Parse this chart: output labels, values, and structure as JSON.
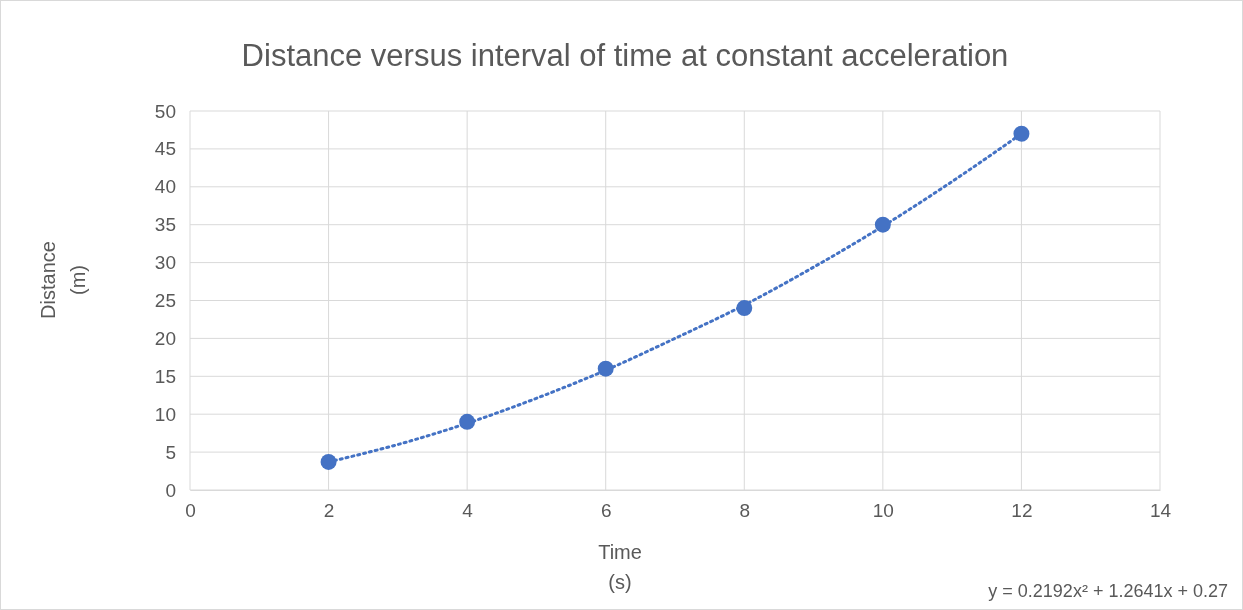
{
  "chart_data": {
    "type": "scatter",
    "title": "Distance versus interval of time at constant acceleration",
    "xlabel": "Time\n(s)",
    "ylabel": "Distance\n(m)",
    "xlim": [
      0,
      14
    ],
    "xticks": [
      0,
      2,
      4,
      6,
      8,
      10,
      12,
      14
    ],
    "ylim": [
      0,
      50
    ],
    "yticks": [
      0,
      5,
      10,
      15,
      20,
      25,
      30,
      35,
      40,
      45,
      50
    ],
    "grid": true,
    "series": [
      {
        "color": "#4472c4",
        "marker": "circle",
        "x": [
          2,
          4,
          6,
          8,
          10,
          12
        ],
        "values": [
          3.7,
          9,
          16,
          24,
          35,
          47
        ]
      },
      {
        "type": "line",
        "color": "#4472c4",
        "marker": "none",
        "line_style": "dotted",
        "x": [
          2,
          3,
          4,
          5,
          6,
          7,
          8,
          9,
          10,
          11,
          12
        ],
        "values": [
          3.7,
          6.0,
          8.8,
          12.1,
          15.8,
          20.0,
          24.4,
          29.4,
          34.8,
          40.7,
          47.0
        ]
      }
    ],
    "annotations": [
      "y = 0.2192x² + 1.2641x + 0.27"
    ]
  }
}
